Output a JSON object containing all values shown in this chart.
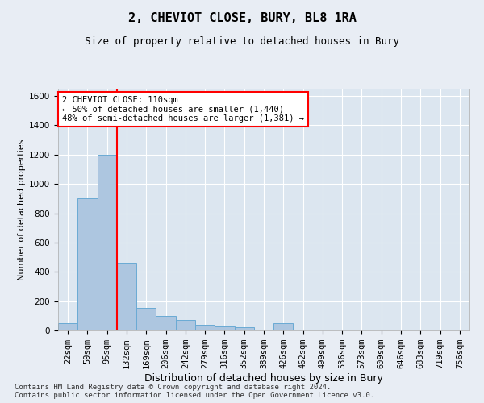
{
  "title": "2, CHEVIOT CLOSE, BURY, BL8 1RA",
  "subtitle": "Size of property relative to detached houses in Bury",
  "xlabel": "Distribution of detached houses by size in Bury",
  "ylabel": "Number of detached properties",
  "footnote": "Contains HM Land Registry data © Crown copyright and database right 2024.\nContains public sector information licensed under the Open Government Licence v3.0.",
  "annotation_title": "2 CHEVIOT CLOSE: 110sqm",
  "annotation_line1": "← 50% of detached houses are smaller (1,440)",
  "annotation_line2": "48% of semi-detached houses are larger (1,381) →",
  "bar_color": "#adc6e0",
  "bar_edge_color": "#6aaad4",
  "ref_line_color": "red",
  "ref_line_x": 2.5,
  "ylim": [
    0,
    1650
  ],
  "yticks": [
    0,
    200,
    400,
    600,
    800,
    1000,
    1200,
    1400,
    1600
  ],
  "categories": [
    "22sqm",
    "59sqm",
    "95sqm",
    "132sqm",
    "169sqm",
    "206sqm",
    "242sqm",
    "279sqm",
    "316sqm",
    "352sqm",
    "389sqm",
    "426sqm",
    "462sqm",
    "499sqm",
    "536sqm",
    "573sqm",
    "609sqm",
    "646sqm",
    "683sqm",
    "719sqm",
    "756sqm"
  ],
  "values": [
    50,
    900,
    1200,
    460,
    155,
    100,
    70,
    40,
    25,
    20,
    0,
    50,
    0,
    0,
    0,
    0,
    0,
    0,
    0,
    0,
    0
  ],
  "background_color": "#e8edf4",
  "plot_bg_color": "#dce6f0",
  "grid_color": "#ffffff",
  "title_fontsize": 11,
  "subtitle_fontsize": 9,
  "tick_fontsize": 7.5,
  "ylabel_fontsize": 8,
  "xlabel_fontsize": 9,
  "footnote_fontsize": 6.5,
  "annotation_fontsize": 7.5
}
